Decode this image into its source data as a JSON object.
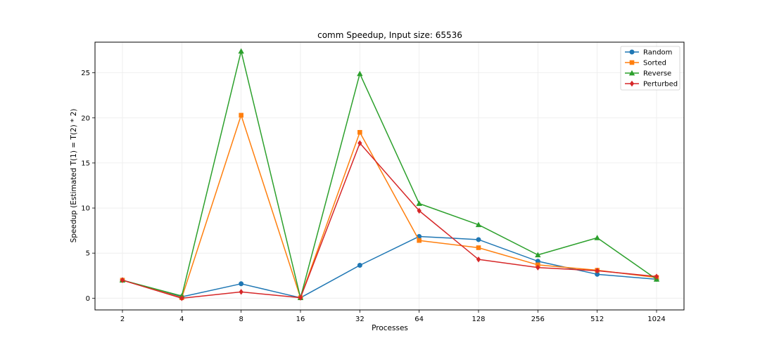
{
  "chart_data": {
    "type": "line",
    "title": "comm Speedup, Input size: 65536",
    "xlabel": "Processes",
    "ylabel": "Speedup (Estimated T(1) = T(2) * 2)",
    "categories": [
      "2",
      "4",
      "8",
      "16",
      "32",
      "64",
      "128",
      "256",
      "512",
      "1024"
    ],
    "ylim": [
      -1.3,
      28.4
    ],
    "yticks": [
      0,
      5,
      10,
      15,
      20,
      25
    ],
    "grid": true,
    "legend_position": "top-right",
    "series": [
      {
        "name": "Random",
        "color": "#1f77b4",
        "marker": "circle",
        "values": [
          2.0,
          0.15,
          1.6,
          0.05,
          3.65,
          6.85,
          6.5,
          4.1,
          2.65,
          2.1
        ]
      },
      {
        "name": "Sorted",
        "color": "#ff7f0e",
        "marker": "square",
        "values": [
          2.0,
          0.05,
          20.3,
          0.05,
          18.4,
          6.4,
          5.6,
          3.7,
          3.1,
          2.3
        ]
      },
      {
        "name": "Reverse",
        "color": "#2ca02c",
        "marker": "triangle",
        "values": [
          2.0,
          0.25,
          27.4,
          0.05,
          24.9,
          10.5,
          8.15,
          4.8,
          6.7,
          2.1
        ]
      },
      {
        "name": "Perturbed",
        "color": "#d62728",
        "marker": "diamond",
        "values": [
          2.0,
          0.0,
          0.7,
          0.05,
          17.2,
          9.7,
          4.3,
          3.4,
          3.05,
          2.4
        ]
      }
    ]
  }
}
